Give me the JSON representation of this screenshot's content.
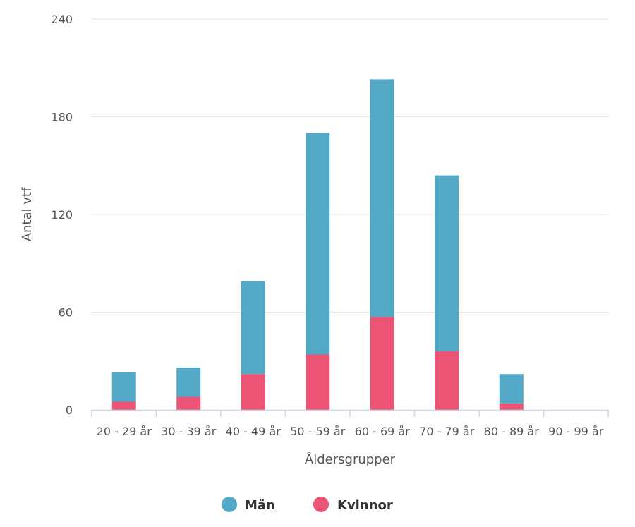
{
  "chart_data": {
    "type": "bar",
    "stacked": true,
    "title": "",
    "xlabel": "Åldersgrupper",
    "ylabel": "Antal vtf",
    "ylim": [
      0,
      240
    ],
    "yticks": [
      0,
      60,
      120,
      180,
      240
    ],
    "grid": true,
    "legend_position": "bottom",
    "categories": [
      "20 - 29 år",
      "30 - 39 år",
      "40 - 49 år",
      "50 - 59 år",
      "60 - 69 år",
      "70 - 79 år",
      "80 - 89 år",
      "90 - 99 år"
    ],
    "series": [
      {
        "name": "Kvinnor",
        "color": "#ec5476",
        "values": [
          5,
          8,
          22,
          34,
          57,
          36,
          4,
          0
        ]
      },
      {
        "name": "Män",
        "color": "#53a8c6",
        "values": [
          18,
          18,
          57,
          136,
          146,
          108,
          18,
          0
        ]
      }
    ],
    "legend": [
      "Män",
      "Kvinnor"
    ]
  }
}
